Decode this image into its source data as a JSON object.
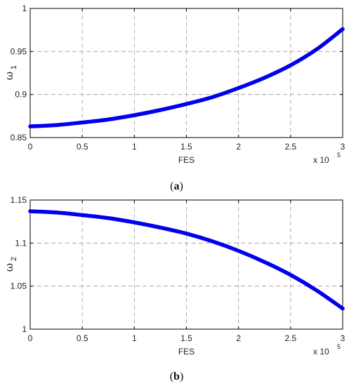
{
  "chart_data": [
    {
      "type": "line",
      "xlabel": "FES",
      "ylabel": "ω",
      "ylabel_sub": "1",
      "x_multiplier_base": "x 10",
      "x_multiplier_exp": "5",
      "caption": "(a)",
      "caption_letter": "a",
      "xlim": [
        0,
        3
      ],
      "ylim": [
        0.85,
        1
      ],
      "xticks": [
        0,
        0.5,
        1,
        1.5,
        2,
        2.5,
        3
      ],
      "xtick_labels": [
        "0",
        "0.5",
        "1",
        "1.5",
        "2",
        "2.5",
        "3"
      ],
      "yticks": [
        0.85,
        0.9,
        0.95,
        1
      ],
      "ytick_labels": [
        "0.85",
        "0.9",
        "0.95",
        "1"
      ],
      "grid": true,
      "series": [
        {
          "color": "#0000ee",
          "x": [
            0,
            0.25,
            0.5,
            0.75,
            1,
            1.25,
            1.5,
            1.75,
            2,
            2.25,
            2.5,
            2.75,
            3
          ],
          "y": [
            0.863,
            0.8645,
            0.8675,
            0.871,
            0.876,
            0.882,
            0.889,
            0.897,
            0.9075,
            0.9195,
            0.934,
            0.9525,
            0.976
          ]
        }
      ]
    },
    {
      "type": "line",
      "xlabel": "FES",
      "ylabel": "ω",
      "ylabel_sub": "2",
      "x_multiplier_base": "x 10",
      "x_multiplier_exp": "5",
      "caption": "(b)",
      "caption_letter": "b",
      "xlim": [
        0,
        3
      ],
      "ylim": [
        1,
        1.15
      ],
      "xticks": [
        0,
        0.5,
        1,
        1.5,
        2,
        2.5,
        3
      ],
      "xtick_labels": [
        "0",
        "0.5",
        "1",
        "1.5",
        "2",
        "2.5",
        "3"
      ],
      "yticks": [
        1,
        1.05,
        1.1,
        1.15
      ],
      "ytick_labels": [
        "1",
        "1.05",
        "1.1",
        "1.15"
      ],
      "grid": true,
      "series": [
        {
          "color": "#0000ee",
          "x": [
            0,
            0.25,
            0.5,
            0.75,
            1,
            1.25,
            1.5,
            1.75,
            2,
            2.25,
            2.5,
            2.75,
            3
          ],
          "y": [
            1.137,
            1.1355,
            1.1325,
            1.129,
            1.124,
            1.118,
            1.111,
            1.102,
            1.091,
            1.078,
            1.063,
            1.045,
            1.024
          ]
        }
      ]
    }
  ]
}
